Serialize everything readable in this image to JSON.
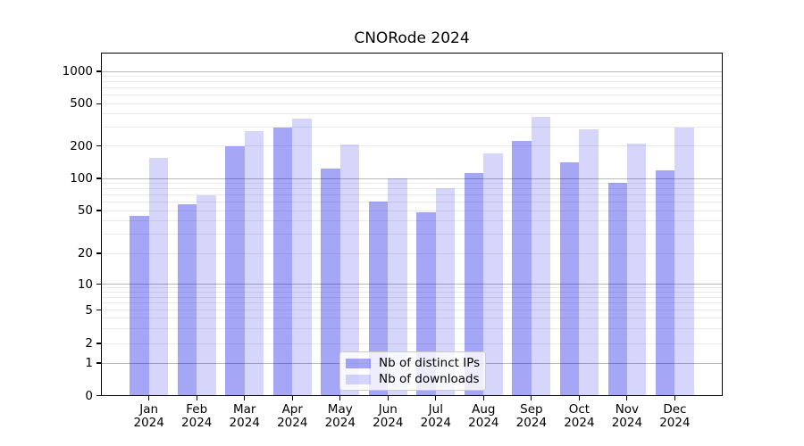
{
  "title": "CNORode 2024",
  "chart_data": {
    "type": "bar",
    "title": "CNORode 2024",
    "categories": [
      "Jan",
      "Feb",
      "Mar",
      "Apr",
      "May",
      "Jun",
      "Jul",
      "Aug",
      "Sep",
      "Oct",
      "Nov",
      "Dec"
    ],
    "year": "2024",
    "series": [
      {
        "name": "Nb of distinct IPs",
        "color": "rgba(0,0,230,0.35)",
        "values": [
          45,
          57,
          198,
          296,
          123,
          61,
          48,
          112,
          225,
          140,
          91,
          120
        ]
      },
      {
        "name": "Nb of downloads",
        "color": "rgba(0,0,230,0.16)",
        "values": [
          155,
          70,
          275,
          363,
          208,
          100,
          81,
          170,
          378,
          287,
          212,
          298
        ]
      }
    ],
    "yscale": "symlog",
    "ylim": [
      0,
      1450
    ],
    "yticks": [
      0,
      1,
      2,
      5,
      10,
      20,
      50,
      100,
      200,
      500,
      1000
    ],
    "grid": {
      "orientation": "horizontal",
      "major": [
        1,
        10,
        100,
        1000
      ],
      "minor": [
        2,
        3,
        4,
        5,
        6,
        7,
        8,
        9,
        20,
        30,
        40,
        50,
        60,
        70,
        80,
        90,
        200,
        300,
        400,
        500,
        600,
        700,
        800,
        900
      ]
    },
    "legend": {
      "position": "lower center",
      "border_color": "#cccccc"
    }
  },
  "colors": {
    "background": "#ffffff",
    "spine": "#000000",
    "grid_major": "#b9b9b9",
    "grid_minor": "#eaeaea",
    "bar_distinct_ips": "rgba(0,0,230,0.35)",
    "bar_downloads": "rgba(0,0,230,0.16)"
  }
}
